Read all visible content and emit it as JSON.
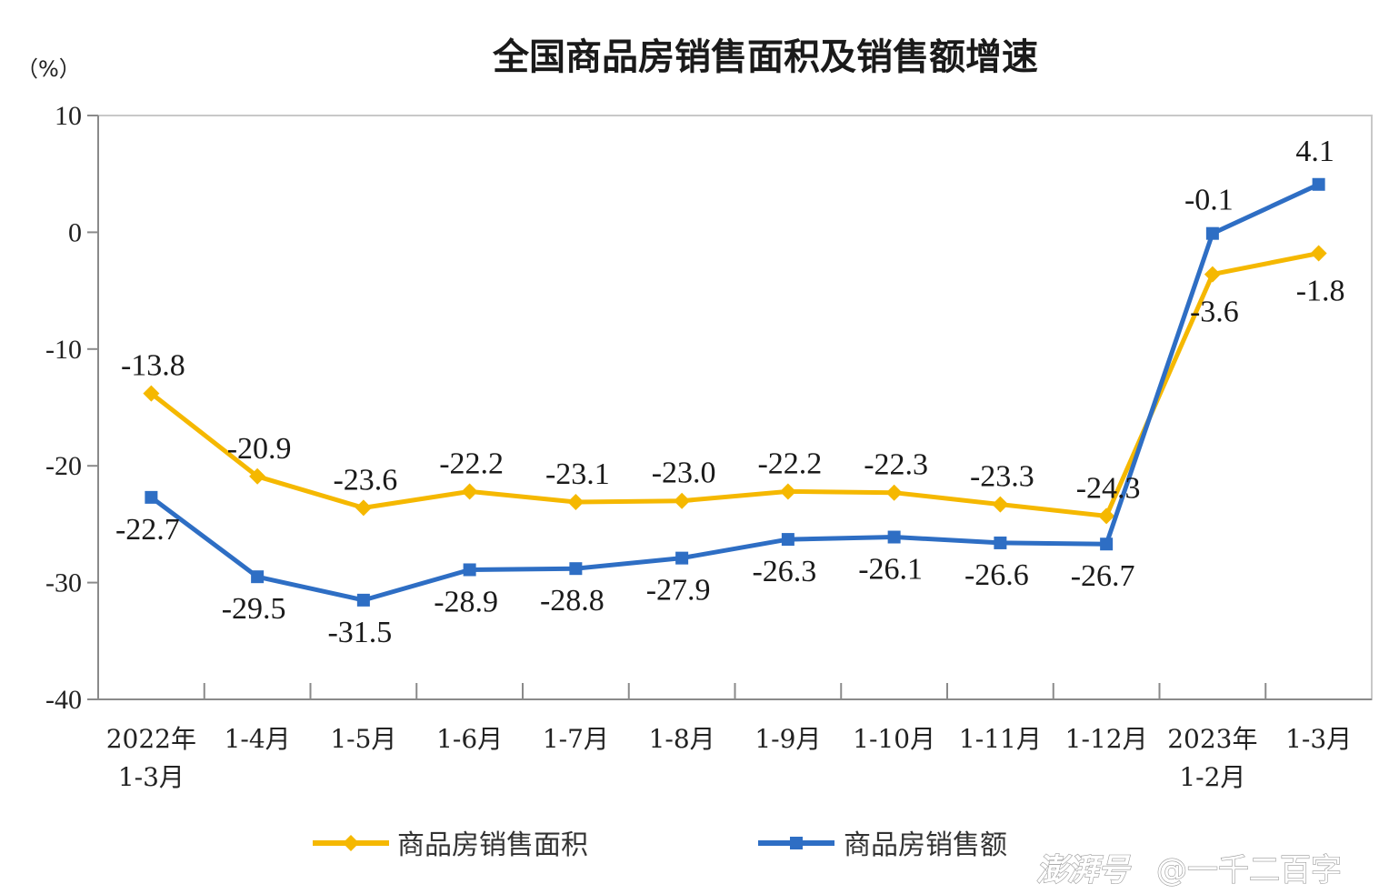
{
  "chart_data": {
    "type": "line",
    "title": "全国商品房销售面积及销售额增速",
    "unit_label": "（%）",
    "ylim": [
      -40,
      10
    ],
    "yticks": [
      10,
      0,
      -10,
      -20,
      -30,
      -40
    ],
    "categories": [
      [
        "2022年",
        "1-3月"
      ],
      [
        "1-4月"
      ],
      [
        "1-5月"
      ],
      [
        "1-6月"
      ],
      [
        "1-7月"
      ],
      [
        "1-8月"
      ],
      [
        "1-9月"
      ],
      [
        "1-10月"
      ],
      [
        "1-11月"
      ],
      [
        "1-12月"
      ],
      [
        "2023年",
        "1-2月"
      ],
      [
        "1-3月"
      ]
    ],
    "series": [
      {
        "name": "商品房销售面积",
        "color": "#F5B800",
        "marker": "diamond",
        "values": [
          -13.8,
          -20.9,
          -23.6,
          -22.2,
          -23.1,
          -23.0,
          -22.2,
          -22.3,
          -23.3,
          -24.3,
          -3.6,
          -1.8
        ],
        "labels": [
          "-13.8",
          "-20.9",
          "-23.6",
          "-22.2",
          "-23.1",
          "-23.0",
          "-22.2",
          "-22.3",
          "-23.3",
          "-24.3",
          "-3.6",
          "-1.8"
        ]
      },
      {
        "name": "商品房销售额",
        "color": "#2E6EC4",
        "marker": "square",
        "values": [
          -22.7,
          -29.5,
          -31.5,
          -28.9,
          -28.8,
          -27.9,
          -26.3,
          -26.1,
          -26.6,
          -26.7,
          -0.1,
          4.1
        ],
        "labels": [
          "-22.7",
          "-29.5",
          "-31.5",
          "-28.9",
          "-28.8",
          "-27.9",
          "-26.3",
          "-26.1",
          "-26.6",
          "-26.7",
          "-0.1",
          "4.1"
        ]
      }
    ],
    "legend": "bottom",
    "grid": false
  },
  "watermark": {
    "logo": "澎湃号",
    "author": "@一千二百字"
  }
}
